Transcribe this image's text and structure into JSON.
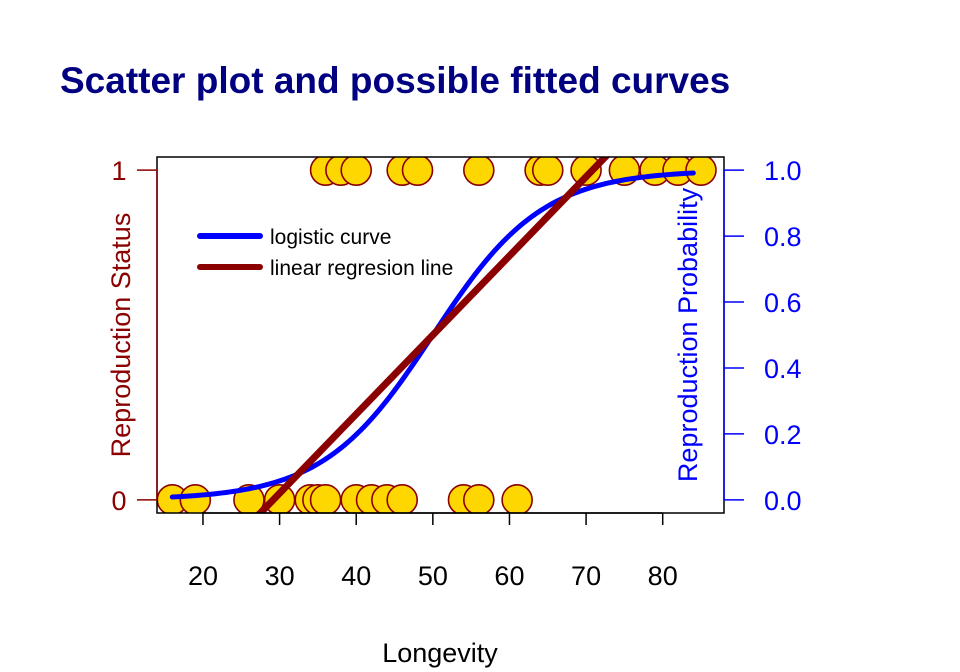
{
  "colors": {
    "title": "#000080",
    "left_axis": "#8B0000",
    "right_axis": "#0000FF",
    "point_fill": "#FFD700",
    "point_stroke": "#8B0000",
    "logistic": "#0000FF",
    "linear": "#8B0000",
    "text": "#000000"
  },
  "chart_data": {
    "type": "scatter",
    "title": "Scatter plot and possible fitted curves",
    "xlabel": "Longevity",
    "ylabel_left": "Reproduction Status",
    "ylabel_right": "Reproduction Probability",
    "xlim": [
      14,
      88
    ],
    "ylim": [
      -0.04,
      1.04
    ],
    "x_ticks": [
      20,
      30,
      40,
      50,
      60,
      70,
      80
    ],
    "x_tick_labels": [
      "20",
      "30",
      "40",
      "50",
      "60",
      "70",
      "80"
    ],
    "y_left_ticks": [
      0,
      1
    ],
    "y_left_tick_labels": [
      "0",
      "1"
    ],
    "y_right_ticks": [
      0,
      0.2,
      0.4,
      0.6,
      0.8,
      1.0
    ],
    "y_right_tick_labels": [
      "0.0",
      "0.2",
      "0.4",
      "0.6",
      "0.8",
      "1.0"
    ],
    "legend_position": "top-left",
    "grid": false,
    "series": [
      {
        "kind": "points",
        "x": [
          16,
          19,
          26,
          30,
          34,
          35,
          36,
          40,
          42,
          44,
          46,
          54,
          56,
          61,
          36,
          38,
          40,
          46,
          48,
          56,
          64,
          65,
          70,
          75,
          79,
          82,
          85
        ],
        "y": [
          0,
          0,
          0,
          0,
          0,
          0,
          0,
          0,
          0,
          0,
          0,
          0,
          0,
          0,
          1,
          1,
          1,
          1,
          1,
          1,
          1,
          1,
          1,
          1,
          1,
          1,
          1
        ]
      },
      {
        "kind": "curve",
        "name": "logistic curve",
        "model": "logistic",
        "midpoint": 50,
        "slope": 0.14,
        "x_range": [
          16,
          84
        ]
      },
      {
        "kind": "curve",
        "name": "linear regresion line",
        "model": "linear",
        "intercept": -0.7,
        "slope": 0.024,
        "x_range": [
          23,
          85
        ]
      }
    ]
  }
}
